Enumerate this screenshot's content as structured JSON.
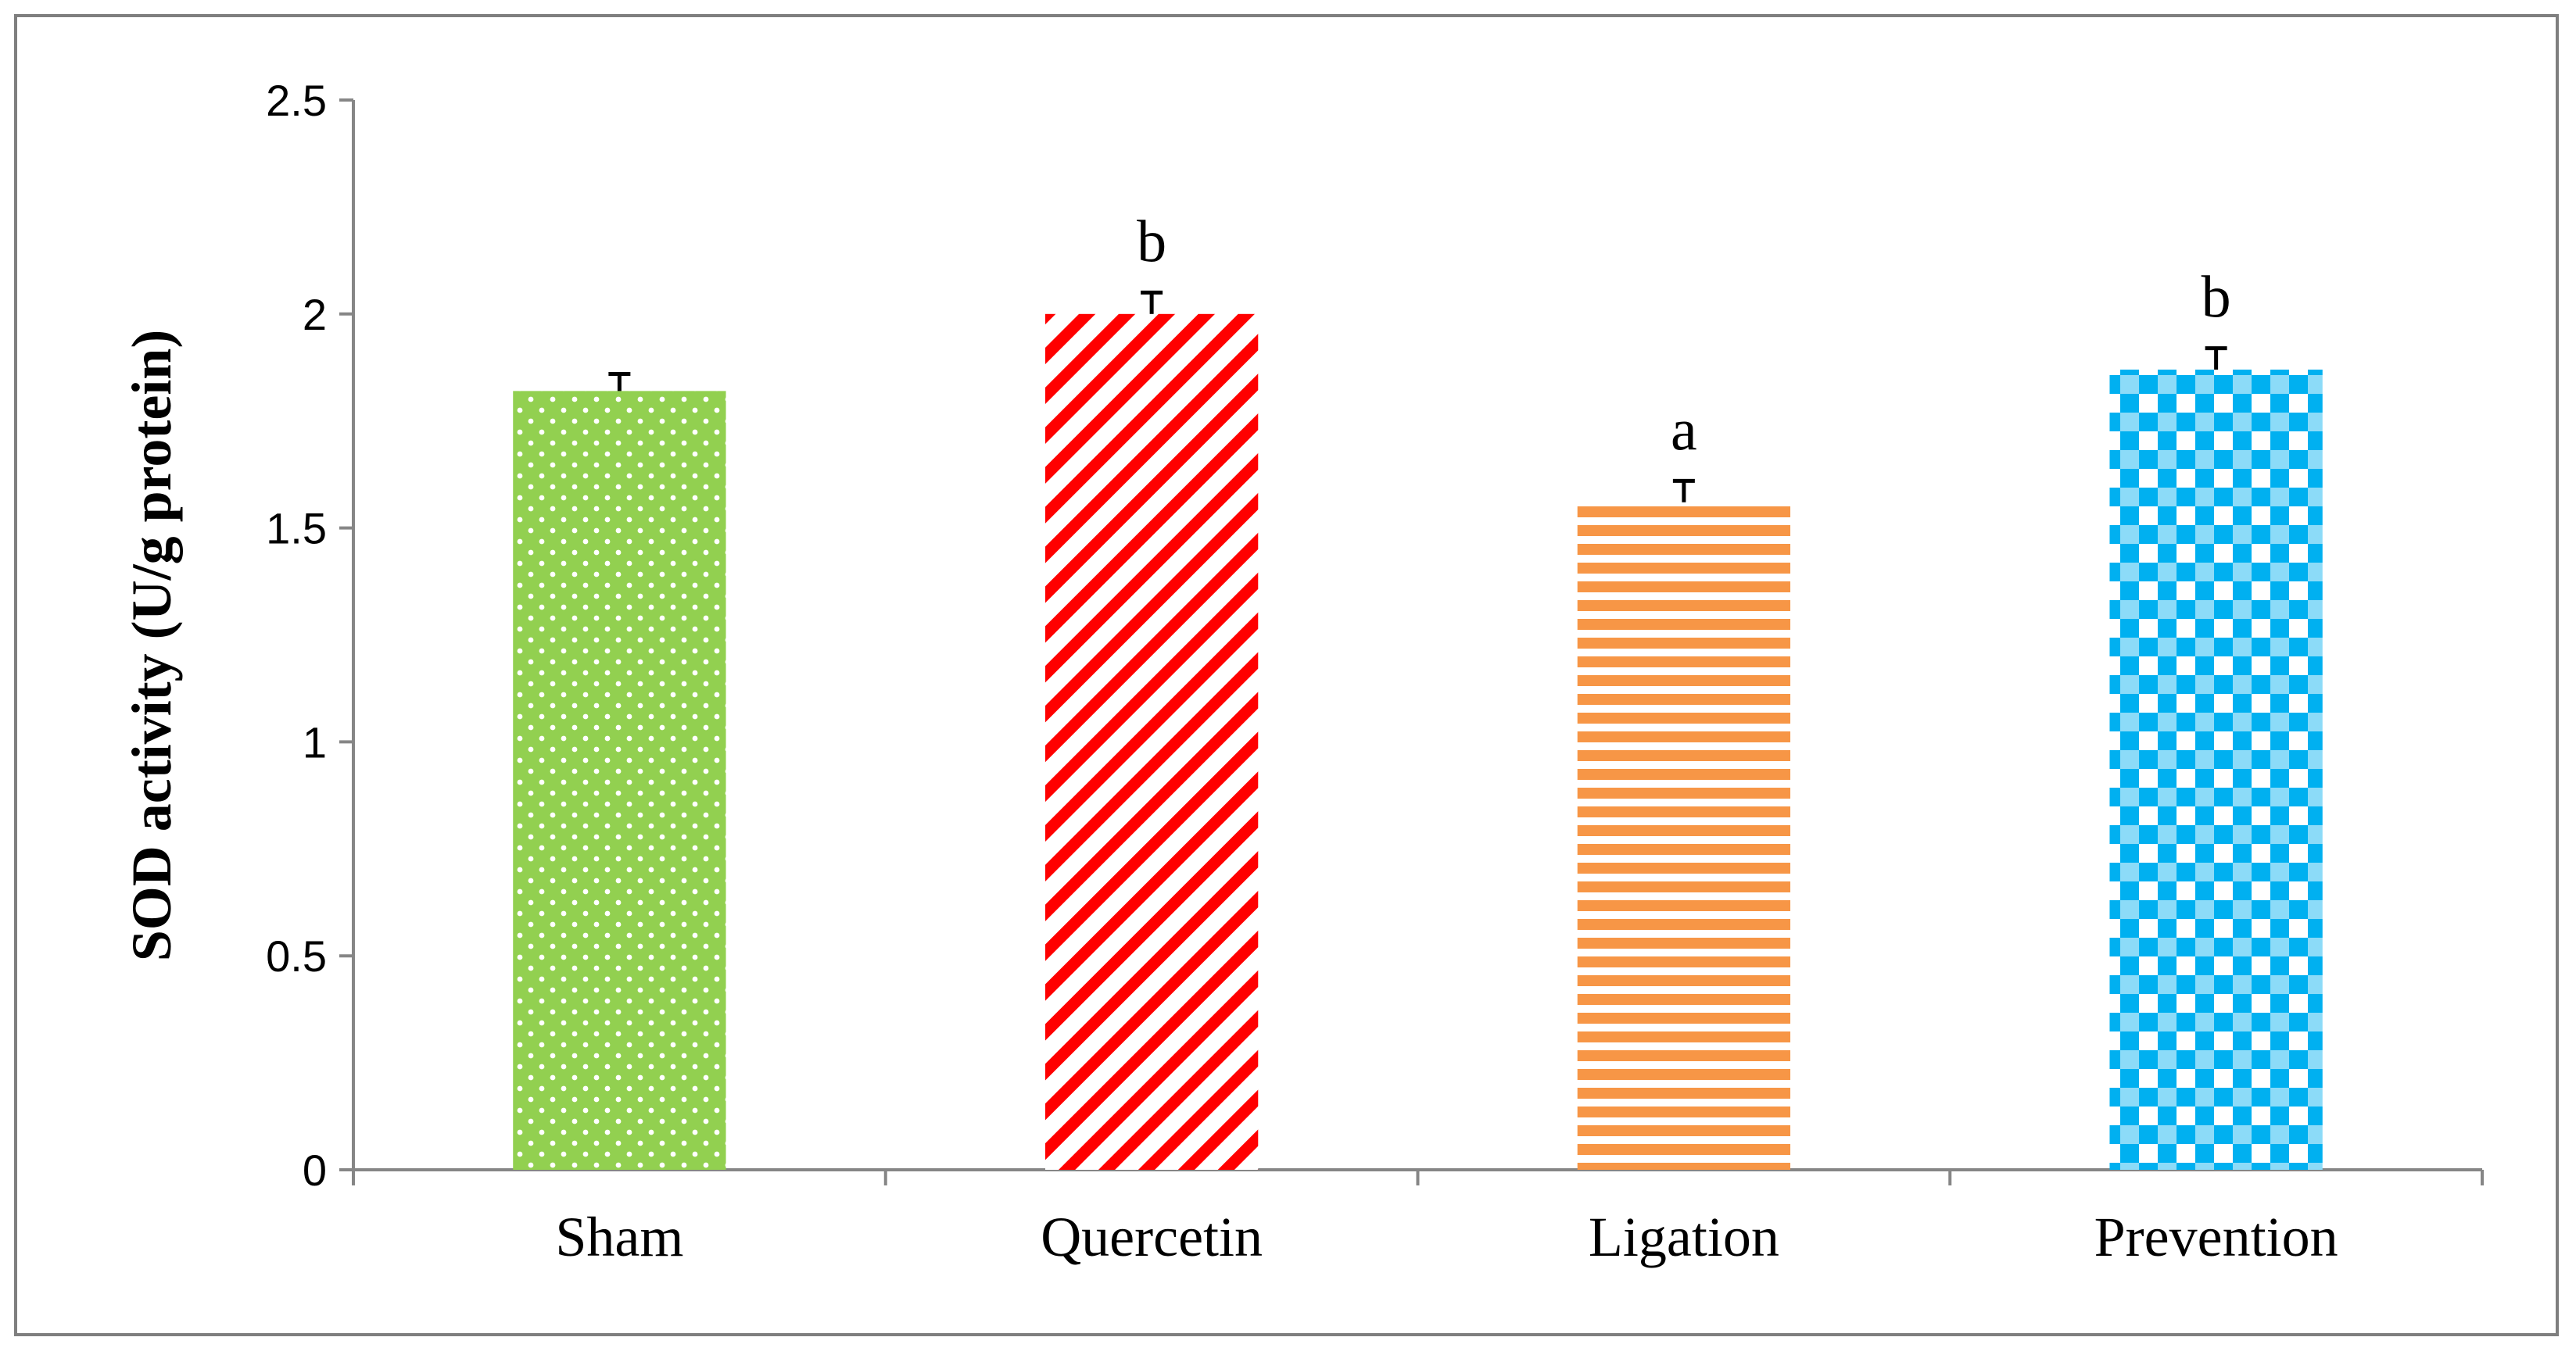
{
  "chart_data": {
    "type": "bar",
    "title": "",
    "xlabel": "",
    "ylabel": "SOD activity (U/g protein)",
    "ylim": [
      0,
      2.5
    ],
    "yticks": [
      0,
      0.5,
      1,
      1.5,
      2,
      2.5
    ],
    "ytick_labels": [
      "0",
      "0.5",
      "1",
      "1.5",
      "2",
      "2.5"
    ],
    "categories": [
      "Sham",
      "Quercetin",
      "Ligation",
      "Prevention"
    ],
    "values": [
      1.82,
      2.0,
      1.56,
      1.87
    ],
    "errors": [
      0.04,
      0.05,
      0.05,
      0.05
    ],
    "annotations": [
      "",
      "b",
      "a",
      "b"
    ],
    "fills": [
      {
        "pattern": "dots",
        "color": "#92d050"
      },
      {
        "pattern": "diagonal",
        "color": "#ff0000"
      },
      {
        "pattern": "horizontal",
        "color": "#f79646"
      },
      {
        "pattern": "checker",
        "color": "#00b0f0"
      }
    ],
    "grid": false,
    "legend": "none"
  }
}
